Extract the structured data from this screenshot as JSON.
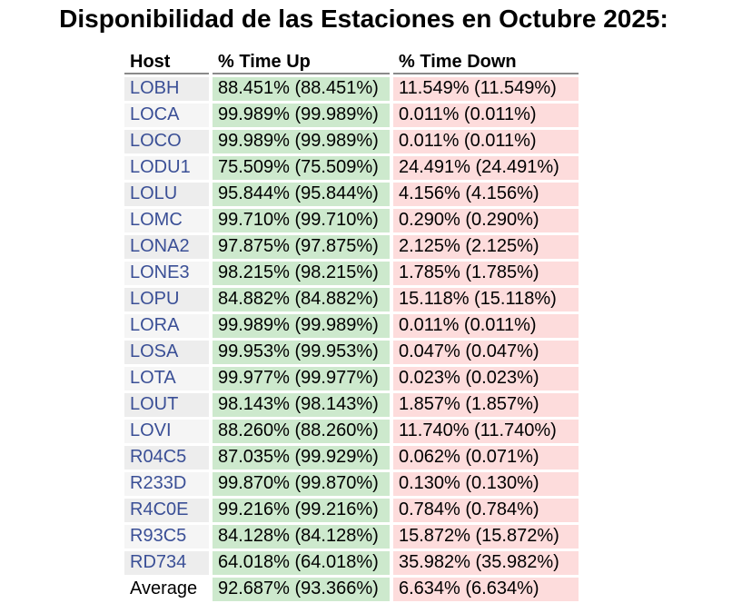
{
  "title": "Disponibilidad de las Estaciones en Octubre 2025:",
  "columns": {
    "host": "Host",
    "up": "% Time Up",
    "down": "% Time Down"
  },
  "rows": [
    {
      "host": "LOBH",
      "up": "88.451% (88.451%)",
      "down": "11.549% (11.549%)"
    },
    {
      "host": "LOCA",
      "up": "99.989% (99.989%)",
      "down": "0.011% (0.011%)"
    },
    {
      "host": "LOCO",
      "up": "99.989% (99.989%)",
      "down": "0.011% (0.011%)"
    },
    {
      "host": "LODU1",
      "up": "75.509% (75.509%)",
      "down": "24.491% (24.491%)"
    },
    {
      "host": "LOLU",
      "up": "95.844% (95.844%)",
      "down": "4.156% (4.156%)"
    },
    {
      "host": "LOMC",
      "up": "99.710% (99.710%)",
      "down": "0.290% (0.290%)"
    },
    {
      "host": "LONA2",
      "up": "97.875% (97.875%)",
      "down": "2.125% (2.125%)"
    },
    {
      "host": "LONE3",
      "up": "98.215% (98.215%)",
      "down": "1.785% (1.785%)"
    },
    {
      "host": "LOPU",
      "up": "84.882% (84.882%)",
      "down": "15.118% (15.118%)"
    },
    {
      "host": "LORA",
      "up": "99.989% (99.989%)",
      "down": "0.011% (0.011%)"
    },
    {
      "host": "LOSA",
      "up": "99.953% (99.953%)",
      "down": "0.047% (0.047%)"
    },
    {
      "host": "LOTA",
      "up": "99.977% (99.977%)",
      "down": "0.023% (0.023%)"
    },
    {
      "host": "LOUT",
      "up": "98.143% (98.143%)",
      "down": "1.857% (1.857%)"
    },
    {
      "host": "LOVI",
      "up": "88.260% (88.260%)",
      "down": "11.740% (11.740%)"
    },
    {
      "host": "R04C5",
      "up": "87.035% (99.929%)",
      "down": "0.062% (0.071%)"
    },
    {
      "host": "R233D",
      "up": "99.870% (99.870%)",
      "down": "0.130% (0.130%)"
    },
    {
      "host": "R4C0E",
      "up": "99.216% (99.216%)",
      "down": "0.784% (0.784%)"
    },
    {
      "host": "R93C5",
      "up": "84.128% (84.128%)",
      "down": "15.872% (15.872%)"
    },
    {
      "host": "RD734",
      "up": "64.018% (64.018%)",
      "down": "35.982% (35.982%)"
    }
  ],
  "average": {
    "label": "Average",
    "up": "92.687% (93.366%)",
    "down": "6.634% (6.634%)"
  },
  "colors": {
    "host_link": "#3a4f96",
    "up_cell": "#cde9cd",
    "down_cell": "#fddcdc",
    "host_cell": "#ededed"
  }
}
